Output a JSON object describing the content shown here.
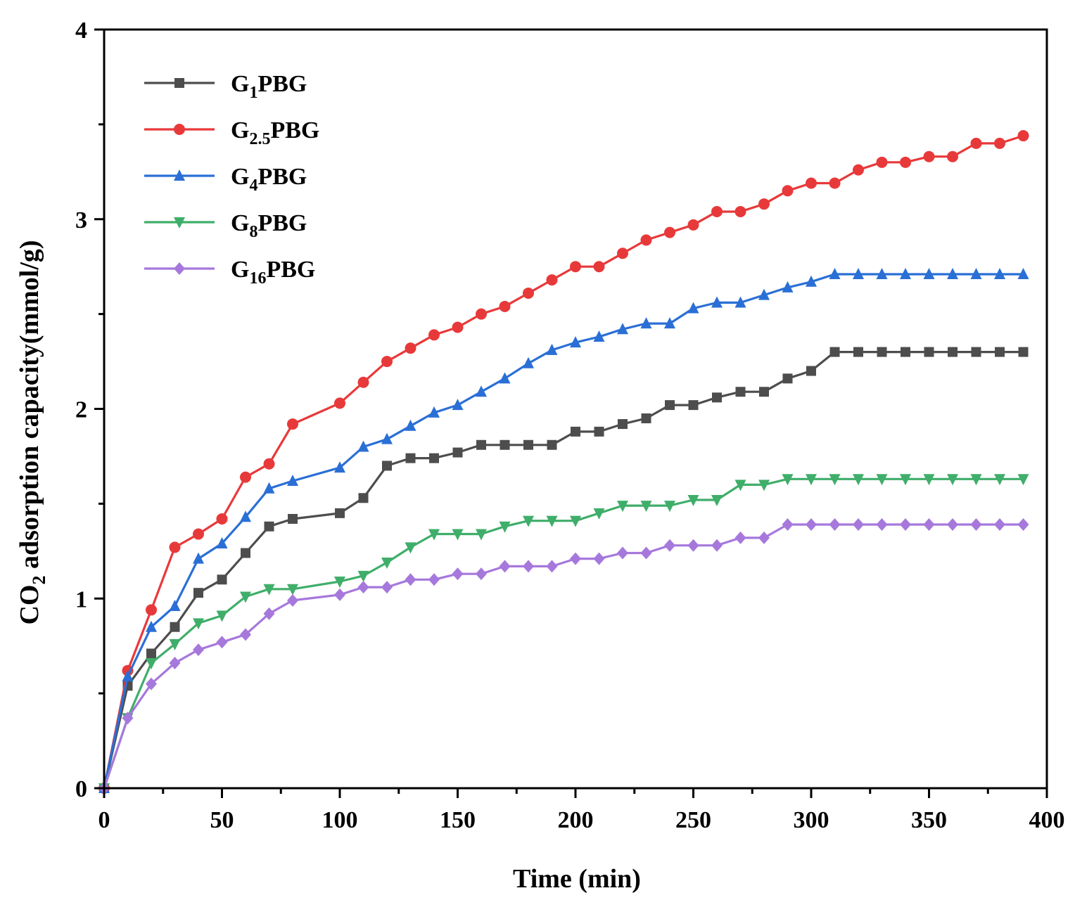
{
  "chart_data": {
    "type": "line",
    "title": "",
    "xlabel": "Time (min)",
    "ylabel": {
      "prefix": "CO",
      "sub": "2",
      "suffix": " adsorption capacity(mmol/g)"
    },
    "xlim": [
      0,
      400
    ],
    "ylim": [
      0,
      4
    ],
    "xticks": [
      0,
      50,
      100,
      150,
      200,
      250,
      300,
      350,
      400
    ],
    "yticks": [
      0,
      1,
      2,
      3,
      4
    ],
    "xtick_labels": [
      "0",
      "50",
      "100",
      "150",
      "200",
      "250",
      "300",
      "350",
      "400"
    ],
    "ytick_labels": [
      "0",
      "1",
      "2",
      "3",
      "4"
    ],
    "grid": false,
    "legend_position": "top-left",
    "x": [
      0,
      10,
      20,
      30,
      40,
      50,
      60,
      70,
      80,
      100,
      110,
      120,
      130,
      140,
      150,
      160,
      170,
      180,
      190,
      200,
      210,
      220,
      230,
      240,
      250,
      260,
      270,
      280,
      290,
      300,
      310,
      320,
      330,
      340,
      350,
      360,
      370,
      380,
      390
    ],
    "series": [
      {
        "name": "G1PBG",
        "label": {
          "base": "G",
          "sub": "1",
          "suffix": "PBG"
        },
        "color": "#4d4d4d",
        "marker": "square",
        "values": [
          0,
          0.54,
          0.71,
          0.85,
          1.03,
          1.1,
          1.24,
          1.38,
          1.42,
          1.45,
          1.53,
          1.7,
          1.74,
          1.74,
          1.77,
          1.81,
          1.81,
          1.81,
          1.81,
          1.88,
          1.88,
          1.92,
          1.95,
          2.02,
          2.02,
          2.06,
          2.09,
          2.09,
          2.16,
          2.2,
          2.3,
          2.3,
          2.3,
          2.3,
          2.3,
          2.3,
          2.3,
          2.3,
          2.3
        ]
      },
      {
        "name": "G2.5PBG",
        "label": {
          "base": "G",
          "sub": "2.5",
          "suffix": "PBG"
        },
        "color": "#e8393a",
        "marker": "circle",
        "values": [
          0,
          0.62,
          0.94,
          1.27,
          1.34,
          1.42,
          1.64,
          1.71,
          1.92,
          2.03,
          2.14,
          2.25,
          2.32,
          2.39,
          2.43,
          2.5,
          2.54,
          2.61,
          2.68,
          2.75,
          2.75,
          2.82,
          2.89,
          2.93,
          2.97,
          3.04,
          3.04,
          3.08,
          3.15,
          3.19,
          3.19,
          3.26,
          3.3,
          3.3,
          3.33,
          3.33,
          3.4,
          3.4,
          3.44
        ]
      },
      {
        "name": "G4PBG",
        "label": {
          "base": "G",
          "sub": "4",
          "suffix": "PBG"
        },
        "color": "#2a6fd6",
        "marker": "triangle-up",
        "values": [
          0,
          0.59,
          0.85,
          0.96,
          1.21,
          1.29,
          1.43,
          1.58,
          1.62,
          1.69,
          1.8,
          1.84,
          1.91,
          1.98,
          2.02,
          2.09,
          2.16,
          2.24,
          2.31,
          2.35,
          2.38,
          2.42,
          2.45,
          2.45,
          2.53,
          2.56,
          2.56,
          2.6,
          2.64,
          2.67,
          2.71,
          2.71,
          2.71,
          2.71,
          2.71,
          2.71,
          2.71,
          2.71,
          2.71
        ]
      },
      {
        "name": "G8PBG",
        "label": {
          "base": "G",
          "sub": "8",
          "suffix": "PBG"
        },
        "color": "#3fae6a",
        "marker": "triangle-down",
        "values": [
          0,
          0.37,
          0.66,
          0.76,
          0.87,
          0.91,
          1.01,
          1.05,
          1.05,
          1.09,
          1.12,
          1.19,
          1.27,
          1.34,
          1.34,
          1.34,
          1.38,
          1.41,
          1.41,
          1.41,
          1.45,
          1.49,
          1.49,
          1.49,
          1.52,
          1.52,
          1.6,
          1.6,
          1.63,
          1.63,
          1.63,
          1.63,
          1.63,
          1.63,
          1.63,
          1.63,
          1.63,
          1.63,
          1.63
        ]
      },
      {
        "name": "G16PBG",
        "label": {
          "base": "G",
          "sub": "16",
          "suffix": "PBG"
        },
        "color": "#a678dc",
        "marker": "diamond",
        "values": [
          0,
          0.37,
          0.55,
          0.66,
          0.73,
          0.77,
          0.81,
          0.92,
          0.99,
          1.02,
          1.06,
          1.06,
          1.1,
          1.1,
          1.13,
          1.13,
          1.17,
          1.17,
          1.17,
          1.21,
          1.21,
          1.24,
          1.24,
          1.28,
          1.28,
          1.28,
          1.32,
          1.32,
          1.39,
          1.39,
          1.39,
          1.39,
          1.39,
          1.39,
          1.39,
          1.39,
          1.39,
          1.39,
          1.39
        ]
      }
    ]
  }
}
